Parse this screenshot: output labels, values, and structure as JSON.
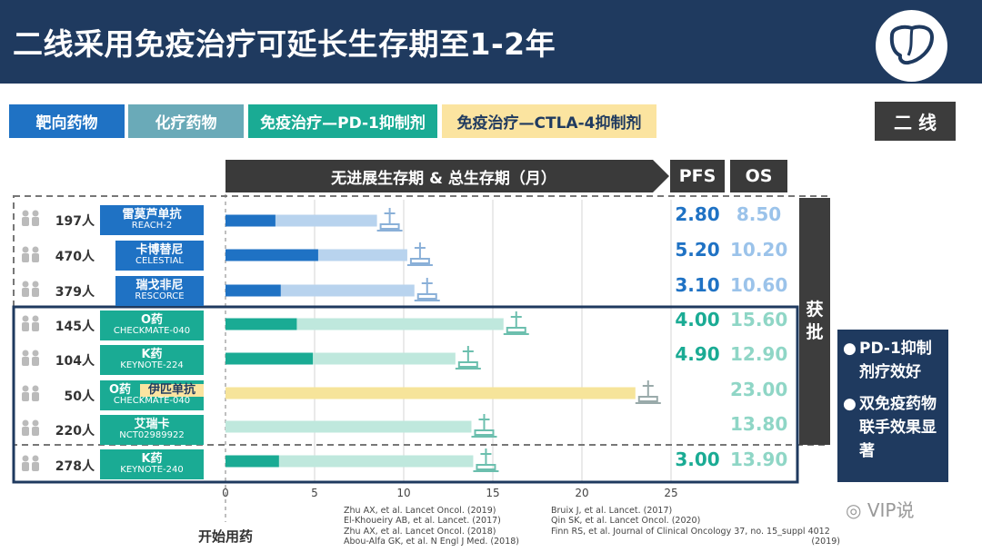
{
  "header": {
    "title": "二线采用免疫治疗可延长生存期至1-2年",
    "logo_icon": "liver-icon"
  },
  "legend": [
    {
      "label": "靶向药物",
      "color": "#1f72c4"
    },
    {
      "label": "化疗药物",
      "color": "#6aaab8"
    },
    {
      "label": "免疫治疗—PD-1抑制剂",
      "color": "#1aab94"
    },
    {
      "label": "免疫治疗—CTLA-4抑制剂",
      "color": "#fbe4a0"
    }
  ],
  "line_badge": "二 线",
  "column_headers": {
    "main": "无进展生存期 & 总生存期（月）",
    "pfs": "PFS",
    "os": "OS"
  },
  "rows": [
    {
      "count": "197人",
      "drug": "雷莫芦单抗",
      "trial": "REACH-2",
      "drug_color": "#1f72c4",
      "pfs": "2.80",
      "os": "8.50"
    },
    {
      "count": "470人",
      "drug": "卡博替尼",
      "trial": "CELESTIAL",
      "drug_color": "#1f72c4",
      "pfs": "5.20",
      "os": "10.20"
    },
    {
      "count": "379人",
      "drug": "瑞戈非尼",
      "trial": "RESCORCE",
      "drug_color": "#1f72c4",
      "pfs": "3.10",
      "os": "10.60"
    },
    {
      "count": "145人",
      "drug": "O药",
      "trial": "CHECKMATE-040",
      "drug_color": "#1aab94",
      "pfs": "4.00",
      "os": "15.60"
    },
    {
      "count": "104人",
      "drug": "K药",
      "trial": "KEYNOTE-224",
      "drug_color": "#1aab94",
      "pfs": "4.90",
      "os": "12.90"
    },
    {
      "count": "50人",
      "drug": "O药",
      "drug2": "伊匹单抗",
      "trial": "CHECKMATE-040",
      "drug_color": "#1aab94",
      "pfs": "",
      "os": "23.00"
    },
    {
      "count": "220人",
      "drug": "艾瑞卡",
      "trial": "NCT02989922",
      "drug_color": "#1aab94",
      "pfs": "",
      "os": "13.80"
    },
    {
      "count": "278人",
      "drug": "K药",
      "trial": "KEYNOTE-240",
      "drug_color": "#1aab94",
      "pfs": "3.00",
      "os": "13.90"
    }
  ],
  "approved_label": [
    "获",
    "批"
  ],
  "notes": [
    "PD-1抑制剂疗效好",
    "双免疫药物联手效果显著"
  ],
  "axis": {
    "ticks": [
      "0",
      "5",
      "10",
      "15",
      "20",
      "25"
    ],
    "start_label": "开始用药"
  },
  "references": {
    "left": [
      "Zhu AX, et al. Lancet Oncol. (2019)",
      "El-Khoueiry AB, et al. Lancet. (2017)",
      "Zhu AX, et al. Lancet Oncol. (2018)",
      "Abou-Alfa GK, et al. N Engl J Med. (2018)"
    ],
    "right": [
      "Bruix J, et al. Lancet. (2017)",
      "Qin SK, et al. Lancet Oncol. (2020)",
      "Finn RS, et al. Journal of Clinical Oncology 37, no. 15_suppl 4012",
      "(2019)"
    ]
  },
  "watermark": "VIP说",
  "chart_data": {
    "type": "bar",
    "title": "无进展生存期 & 总生存期（月）",
    "categories": [
      "雷莫芦单抗 REACH-2",
      "卡博替尼 CELESTIAL",
      "瑞戈非尼 RESCORCE",
      "O药 CHECKMATE-040",
      "K药 KEYNOTE-224",
      "O药 伊匹单抗 CHECKMATE-040",
      "艾瑞卡 NCT02989922",
      "K药 KEYNOTE-240"
    ],
    "series": [
      {
        "name": "PFS",
        "values": [
          2.8,
          5.2,
          3.1,
          4.0,
          4.9,
          null,
          null,
          3.0
        ]
      },
      {
        "name": "OS",
        "values": [
          8.5,
          10.2,
          10.6,
          15.6,
          12.9,
          23.0,
          13.8,
          13.9
        ]
      }
    ],
    "xlim": [
      0,
      25
    ],
    "grid": true,
    "colors": {
      "targeted_pfs": "#1f72c4",
      "targeted_os": "#b8d3ee",
      "pd1_pfs": "#1aab94",
      "pd1_os": "#bfe8dd",
      "ctla4_os": "#f6e49a"
    }
  }
}
